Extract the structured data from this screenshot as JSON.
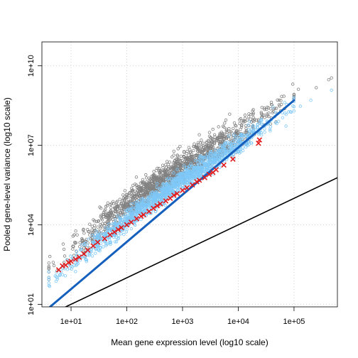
{
  "chart_data": {
    "type": "scatter",
    "title": "",
    "xlabel": "Mean gene expression level (log10 scale)",
    "ylabel": "Pooled gene-level variance (log10 scale)",
    "x_scale": "log10",
    "y_scale": "log10",
    "xlim": [
      3,
      600000
    ],
    "ylim": [
      8,
      80000000000
    ],
    "x_ticks": [
      {
        "value": 10,
        "label": "1e+01"
      },
      {
        "value": 100,
        "label": "1e+02"
      },
      {
        "value": 1000,
        "label": "1e+03"
      },
      {
        "value": 10000,
        "label": "1e+04"
      },
      {
        "value": 100000,
        "label": "1e+05"
      }
    ],
    "y_ticks": [
      {
        "value": 10,
        "label": "1e+01"
      },
      {
        "value": 10000,
        "label": "1e+04"
      },
      {
        "value": 10000000,
        "label": "1e+07"
      },
      {
        "value": 10000000000,
        "label": "1e+10"
      }
    ],
    "grid": true,
    "colors": {
      "gene_variance_points": "#808080",
      "fitted_variance_points": "#7ec8f8",
      "binned_pooled_variance_markers": "#e31a1c",
      "trend_line": "#1560bd",
      "reference_line": "#000000"
    },
    "series": [
      {
        "type": "scatter",
        "marker": "open-circle",
        "color": "#808080",
        "band_center": [
          [
            4,
            200
          ],
          [
            10,
            1200
          ],
          [
            100,
            60000
          ],
          [
            1000,
            1500000
          ],
          [
            10000,
            30000000
          ],
          [
            100000,
            800000000
          ]
        ],
        "band_spread_decades": 0.55,
        "outliers": [
          [
            420000,
            3000000000
          ],
          [
            470000,
            3500000000
          ],
          [
            250000,
            1500000000
          ],
          [
            120000,
            1300000000
          ],
          [
            60000,
            700000000
          ],
          [
            7000,
            150000000
          ],
          [
            6000,
            90000000
          ],
          [
            3500,
            40000000
          ],
          [
            2000,
            25000000
          ],
          [
            900,
            9000000
          ],
          [
            700,
            6000000
          ]
        ]
      },
      {
        "type": "scatter",
        "marker": "open-circle",
        "color": "#7ec8f8",
        "band_center": [
          [
            4,
            80
          ],
          [
            10,
            350
          ],
          [
            100,
            15000
          ],
          [
            1000,
            500000
          ],
          [
            10000,
            12000000
          ],
          [
            100000,
            350000000
          ]
        ],
        "band_spread_decades": 0.4,
        "outliers": [
          [
            470000,
            1200000000
          ],
          [
            200000,
            500000000
          ],
          [
            130000,
            300000000
          ]
        ]
      },
      {
        "type": "scatter",
        "marker": "x",
        "color": "#e31a1c",
        "points": [
          [
            6,
            200
          ],
          [
            7,
            280
          ],
          [
            8,
            300
          ],
          [
            9,
            380
          ],
          [
            10,
            420
          ],
          [
            12,
            500
          ],
          [
            14,
            600
          ],
          [
            17,
            800
          ],
          [
            20,
            1100
          ],
          [
            25,
            1600
          ],
          [
            30,
            2200
          ],
          [
            40,
            3000
          ],
          [
            50,
            4200
          ],
          [
            60,
            5300
          ],
          [
            70,
            6600
          ],
          [
            80,
            7800
          ],
          [
            100,
            10000
          ],
          [
            120,
            12500
          ],
          [
            150,
            17000
          ],
          [
            180,
            21000
          ],
          [
            200,
            24000
          ],
          [
            250,
            32000
          ],
          [
            300,
            42000
          ],
          [
            350,
            52000
          ],
          [
            400,
            62000
          ],
          [
            500,
            80000
          ],
          [
            600,
            100000
          ],
          [
            700,
            130000
          ],
          [
            800,
            150000
          ],
          [
            1000,
            200000
          ],
          [
            1200,
            250000
          ],
          [
            1500,
            320000
          ],
          [
            1800,
            420000
          ],
          [
            2000,
            480000
          ],
          [
            2500,
            600000
          ],
          [
            3000,
            800000
          ],
          [
            3500,
            950000
          ],
          [
            4000,
            1200000
          ],
          [
            5500,
            1800000
          ],
          [
            8000,
            3000000
          ],
          [
            23000,
            12000000
          ],
          [
            24000,
            16000000
          ]
        ]
      },
      {
        "type": "line",
        "color": "#1560bd",
        "points": [
          [
            4.2,
            8
          ],
          [
            100000,
            500000000
          ]
        ]
      },
      {
        "type": "line",
        "color": "#000000",
        "points": [
          [
            8,
            8
          ],
          [
            600000,
            600000
          ]
        ]
      }
    ]
  }
}
